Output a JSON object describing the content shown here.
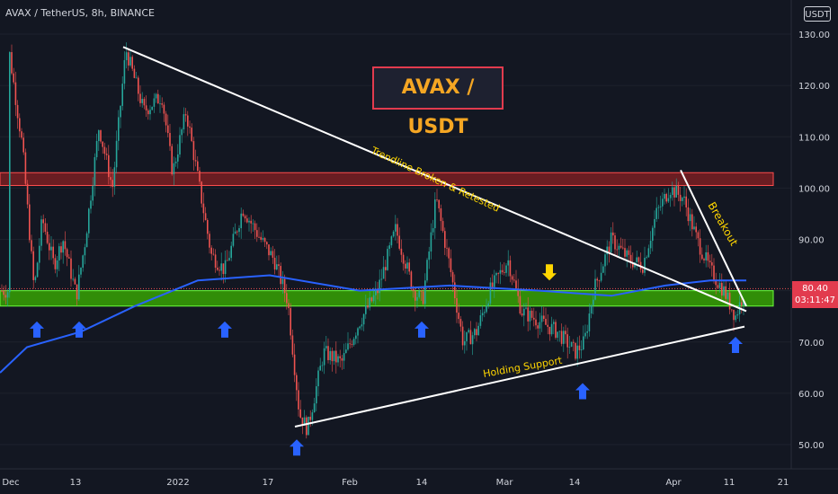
{
  "header": {
    "symbol_title": "AVAX / TetherUS, 8h, BINANCE",
    "currency": "USDT"
  },
  "annotations": {
    "title": "AVAX / USDT",
    "trendline_label": "Trendline Broken & Retested",
    "breakout_label": "Breakout",
    "support_label": "Holding Support"
  },
  "price_tag": {
    "price": "80.40",
    "countdown": "03:11:47"
  },
  "colors": {
    "background": "#131722",
    "up": "#26a69a",
    "down": "#ef5350",
    "ma": "#2962ff",
    "resistance_zone": "#b22222",
    "support_zone": "#3cb500",
    "arrow_up": "#2962ff",
    "arrow_down": "#ffd600",
    "label": "#ffd600",
    "title": "#f5a623"
  },
  "chart_data": {
    "type": "candlestick",
    "y_axis": {
      "ticks": [
        "130.00",
        "120.00",
        "110.00",
        "100.00",
        "90.00",
        "80.00",
        "70.00",
        "60.00",
        "50.00"
      ],
      "range": [
        48,
        133
      ]
    },
    "x_axis": {
      "ticks": [
        "Dec",
        "13",
        "2022",
        "17",
        "Feb",
        "14",
        "Mar",
        "14",
        "Apr",
        "11",
        "21"
      ]
    },
    "price_anchors": [
      {
        "x": 10,
        "price": 127
      },
      {
        "x": 25,
        "price": 108
      },
      {
        "x": 38,
        "price": 80
      },
      {
        "x": 47,
        "price": 94
      },
      {
        "x": 60,
        "price": 85
      },
      {
        "x": 70,
        "price": 90
      },
      {
        "x": 85,
        "price": 79
      },
      {
        "x": 95,
        "price": 90
      },
      {
        "x": 110,
        "price": 112
      },
      {
        "x": 125,
        "price": 100
      },
      {
        "x": 140,
        "price": 127
      },
      {
        "x": 160,
        "price": 115
      },
      {
        "x": 180,
        "price": 118
      },
      {
        "x": 192,
        "price": 103
      },
      {
        "x": 207,
        "price": 115
      },
      {
        "x": 222,
        "price": 100
      },
      {
        "x": 235,
        "price": 87
      },
      {
        "x": 250,
        "price": 84
      },
      {
        "x": 270,
        "price": 96
      },
      {
        "x": 290,
        "price": 90
      },
      {
        "x": 305,
        "price": 86
      },
      {
        "x": 320,
        "price": 78
      },
      {
        "x": 333,
        "price": 56
      },
      {
        "x": 342,
        "price": 53
      },
      {
        "x": 360,
        "price": 68
      },
      {
        "x": 380,
        "price": 66
      },
      {
        "x": 400,
        "price": 74
      },
      {
        "x": 420,
        "price": 80
      },
      {
        "x": 440,
        "price": 92
      },
      {
        "x": 460,
        "price": 80
      },
      {
        "x": 470,
        "price": 78
      },
      {
        "x": 485,
        "price": 98
      },
      {
        "x": 500,
        "price": 85
      },
      {
        "x": 515,
        "price": 70
      },
      {
        "x": 530,
        "price": 72
      },
      {
        "x": 545,
        "price": 80
      },
      {
        "x": 565,
        "price": 86
      },
      {
        "x": 580,
        "price": 76
      },
      {
        "x": 600,
        "price": 74
      },
      {
        "x": 620,
        "price": 72
      },
      {
        "x": 640,
        "price": 68
      },
      {
        "x": 650,
        "price": 70
      },
      {
        "x": 660,
        "price": 80
      },
      {
        "x": 680,
        "price": 90
      },
      {
        "x": 700,
        "price": 86
      },
      {
        "x": 715,
        "price": 85
      },
      {
        "x": 730,
        "price": 95
      },
      {
        "x": 745,
        "price": 100
      },
      {
        "x": 760,
        "price": 98
      },
      {
        "x": 775,
        "price": 90
      },
      {
        "x": 790,
        "price": 84
      },
      {
        "x": 805,
        "price": 80
      },
      {
        "x": 818,
        "price": 75
      },
      {
        "x": 828,
        "price": 80
      }
    ],
    "moving_average": [
      {
        "x": 0,
        "price": 64
      },
      {
        "x": 30,
        "price": 69
      },
      {
        "x": 90,
        "price": 72
      },
      {
        "x": 150,
        "price": 77
      },
      {
        "x": 220,
        "price": 82
      },
      {
        "x": 300,
        "price": 83
      },
      {
        "x": 400,
        "price": 80
      },
      {
        "x": 500,
        "price": 81
      },
      {
        "x": 600,
        "price": 80
      },
      {
        "x": 680,
        "price": 79
      },
      {
        "x": 740,
        "price": 81
      },
      {
        "x": 790,
        "price": 82
      },
      {
        "x": 830,
        "price": 82
      }
    ],
    "zones": [
      {
        "name": "resistance",
        "top": 103,
        "bottom": 100.5
      },
      {
        "name": "support",
        "top": 80,
        "bottom": 77
      }
    ],
    "trendlines": [
      {
        "name": "descending",
        "from": {
          "x": 137,
          "price": 127.5
        },
        "to": {
          "x": 830,
          "price": 76
        }
      },
      {
        "name": "ascending",
        "from": {
          "x": 328,
          "price": 53.5
        },
        "to": {
          "x": 828,
          "price": 73
        }
      },
      {
        "name": "breakout",
        "from": {
          "x": 757,
          "price": 103.5
        },
        "to": {
          "x": 830,
          "price": 77
        }
      }
    ],
    "current_price": 80.4,
    "arrows": [
      {
        "x": 41,
        "price": 74,
        "dir": "up"
      },
      {
        "x": 88,
        "price": 74,
        "dir": "up"
      },
      {
        "x": 250,
        "price": 74,
        "dir": "up"
      },
      {
        "x": 469,
        "price": 74,
        "dir": "up"
      },
      {
        "x": 330,
        "price": 51,
        "dir": "up"
      },
      {
        "x": 648,
        "price": 62,
        "dir": "up"
      },
      {
        "x": 818,
        "price": 71,
        "dir": "up"
      },
      {
        "x": 611,
        "price": 82,
        "dir": "down"
      }
    ]
  }
}
